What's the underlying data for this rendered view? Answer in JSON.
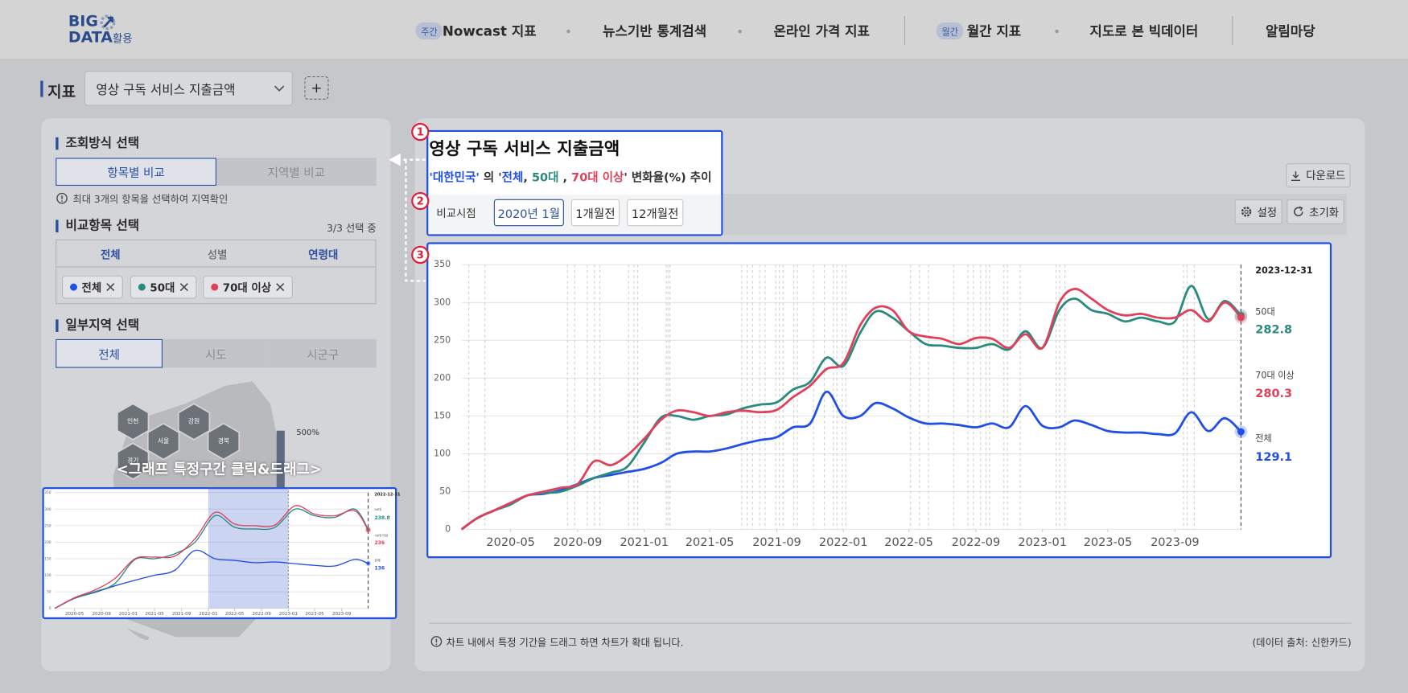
{
  "header": {
    "logo": {
      "line1": "BIG",
      "line2": "DATA",
      "suffix": "활용"
    },
    "nav": [
      {
        "badge": "주간",
        "label": "Nowcast 지표"
      },
      {
        "label": "뉴스기반 통계검색"
      },
      {
        "label": "온라인 가격 지표"
      },
      {
        "badge": "월간",
        "label": "월간 지표"
      },
      {
        "label": "지도로 본 빅데이터"
      },
      {
        "label": "알림마당"
      }
    ]
  },
  "indicator": {
    "label": "지표",
    "selected": "영상 구독 서비스 지출금액",
    "add": "+"
  },
  "left_panel": {
    "query_mode": {
      "title": "조회방식 선택",
      "tabs": [
        "항목별 비교",
        "지역별 비교"
      ],
      "note": "최대 3개의 항목을 선택하여 지역확인"
    },
    "compare": {
      "title": "비교항목 선택",
      "count": "3/3 선택 중",
      "tabs": [
        "전체",
        "성별",
        "연령대"
      ],
      "chips": [
        {
          "label": "전체",
          "color": "#1f4fe8"
        },
        {
          "label": "50대",
          "color": "#2a8a7e"
        },
        {
          "label": "70대 이상",
          "color": "#e0405a"
        }
      ]
    },
    "region": {
      "title": "일부지역 선택",
      "tabs": [
        "전체",
        "시도",
        "시군구"
      ]
    },
    "map": {
      "regions": [
        "인천",
        "강원",
        "서울",
        "경북",
        "경기"
      ],
      "legend": "500%"
    }
  },
  "tutorial": {
    "steps": [
      "1",
      "2",
      "3"
    ],
    "drag_hint": "<그래프 특정구간 클릭&드래그>"
  },
  "chart_panel": {
    "title": "영상 구독 서비스 지출금액",
    "subtitle": [
      {
        "text": "'대한민국'",
        "color": "#1f4fe8"
      },
      {
        "text": " 의 '"
      },
      {
        "text": "전체",
        "color": "#1f4fe8"
      },
      {
        "text": ", "
      },
      {
        "text": "50대",
        "color": "#2a8a7e"
      },
      {
        "text": " , "
      },
      {
        "text": "70대 이상",
        "color": "#e0405a"
      },
      {
        "text": "'"
      },
      {
        "text": " 변화율(%) 추이"
      }
    ],
    "compare_label": "비교시점",
    "compare_options": [
      "2020년 1월",
      "1개월전",
      "12개월전"
    ],
    "download": "다운로드",
    "settings": "설정",
    "reset": "초기화",
    "note": "차트 내에서 특정 기간을 드래그 하면 차트가 확대 됩니다.",
    "source": "(데이터 출처: 신한카드)"
  },
  "chart_data": [
    {
      "type": "line",
      "x": [
        "2020-02",
        "2020-03",
        "2020-04",
        "2020-05",
        "2020-06",
        "2020-07",
        "2020-08",
        "2020-09",
        "2020-10",
        "2020-11",
        "2020-12",
        "2021-01",
        "2021-02",
        "2021-03",
        "2021-04",
        "2021-05",
        "2021-06",
        "2021-07",
        "2021-08",
        "2021-09",
        "2021-10",
        "2021-11",
        "2021-12",
        "2022-01",
        "2022-02",
        "2022-03",
        "2022-04",
        "2022-05",
        "2022-06",
        "2022-07",
        "2022-08",
        "2022-09",
        "2022-10",
        "2022-11",
        "2022-12",
        "2023-01",
        "2023-02",
        "2023-03",
        "2023-04",
        "2023-05",
        "2023-06",
        "2023-07",
        "2023-08",
        "2023-09",
        "2023-10",
        "2023-11",
        "2023-12",
        "2023-12-31"
      ],
      "series": [
        {
          "name": "전체",
          "color": "#1f4fe8",
          "values": [
            0,
            15,
            25,
            35,
            45,
            47,
            52,
            60,
            68,
            72,
            76,
            80,
            88,
            100,
            103,
            103,
            107,
            113,
            118,
            122,
            135,
            140,
            182,
            150,
            150,
            167,
            160,
            148,
            140,
            140,
            138,
            135,
            140,
            135,
            163,
            137,
            135,
            144,
            138,
            130,
            128,
            128,
            126,
            127,
            155,
            130,
            147,
            129.1
          ]
        },
        {
          "name": "50대",
          "color": "#2a8a7e",
          "values": [
            0,
            15,
            25,
            33,
            45,
            48,
            50,
            58,
            68,
            75,
            83,
            115,
            148,
            150,
            145,
            150,
            152,
            160,
            165,
            168,
            185,
            195,
            227,
            216,
            260,
            288,
            280,
            262,
            245,
            243,
            240,
            240,
            245,
            238,
            262,
            240,
            290,
            305,
            290,
            285,
            275,
            280,
            275,
            275,
            322,
            278,
            302,
            282.8
          ]
        },
        {
          "name": "70대 이상",
          "color": "#e0405a",
          "values": [
            0,
            15,
            25,
            35,
            45,
            50,
            55,
            60,
            90,
            85,
            98,
            120,
            145,
            157,
            155,
            150,
            155,
            157,
            155,
            158,
            175,
            190,
            212,
            220,
            270,
            293,
            290,
            262,
            255,
            252,
            245,
            253,
            252,
            240,
            258,
            240,
            300,
            318,
            305,
            290,
            283,
            285,
            280,
            280,
            290,
            275,
            300,
            280.3
          ]
        }
      ],
      "xlim": [
        "2020-02",
        "2023-12-31"
      ],
      "xticks": [
        "2020-05",
        "2020-09",
        "2021-01",
        "2021-05",
        "2021-09",
        "2022-01",
        "2022-05",
        "2022-09",
        "2023-01",
        "2023-05",
        "2023-09"
      ],
      "ylim": [
        0,
        350
      ],
      "yticks": [
        0,
        50,
        100,
        150,
        200,
        250,
        300,
        350
      ],
      "grid": true
    },
    {
      "type": "line",
      "x": [
        "2020-02",
        "2020-05",
        "2020-08",
        "2020-11",
        "2021-02",
        "2021-05",
        "2021-08",
        "2021-11",
        "2022-02",
        "2022-05",
        "2022-08",
        "2022-11",
        "2023-02",
        "2023-05",
        "2023-08",
        "2023-11",
        "2023-12-31"
      ],
      "series": [
        {
          "name": "전체",
          "color": "#1f4fe8",
          "values": [
            0,
            30,
            48,
            68,
            85,
            100,
            115,
            175,
            150,
            145,
            138,
            140,
            135,
            130,
            128,
            148,
            136
          ]
        },
        {
          "name": "50대",
          "color": "#2a8a7e",
          "values": [
            0,
            30,
            50,
            75,
            148,
            150,
            165,
            200,
            280,
            245,
            240,
            245,
            300,
            280,
            275,
            300,
            238.8
          ]
        },
        {
          "name": "70대 이상",
          "color": "#e0405a",
          "values": [
            0,
            32,
            55,
            90,
            150,
            155,
            158,
            210,
            290,
            255,
            250,
            252,
            310,
            285,
            280,
            295,
            236
          ]
        }
      ],
      "annotation": "2022-12-31",
      "highlight_range": [
        "2022-01",
        "2023-01"
      ],
      "xlim": [
        "2020-02",
        "2023-12-31"
      ],
      "xticks": [
        "2020-05",
        "2020-09",
        "2021-01",
        "2021-05",
        "2021-09",
        "2022-01",
        "2022-05",
        "2022-09",
        "2023-01",
        "2023-05",
        "2023-09"
      ],
      "ylim": [
        0,
        350
      ],
      "yticks": [
        0,
        50,
        100,
        150,
        200,
        250,
        300,
        350
      ],
      "grid": true
    }
  ]
}
